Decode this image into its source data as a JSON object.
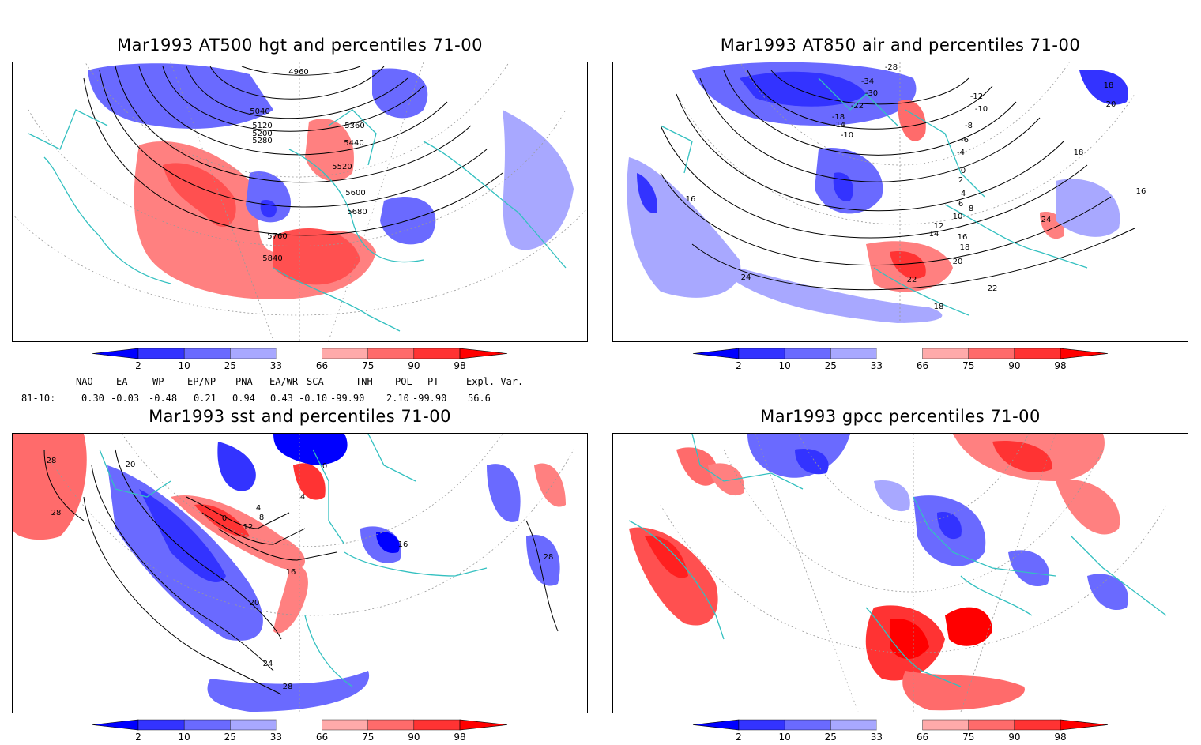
{
  "panels": [
    {
      "id": "hgt",
      "title": "Mar1993 AT500 hgt and percentiles 71-00",
      "contour_labels": [
        "4960",
        "5040",
        "5120",
        "5200",
        "5280",
        "5360",
        "5440",
        "5520",
        "5600",
        "5680",
        "5760",
        "5840"
      ]
    },
    {
      "id": "air",
      "title": "Mar1993 AT850 air and percentiles 71-00",
      "contour_labels": [
        "-28",
        "-34",
        "-30",
        "-22",
        "-18",
        "-14",
        "-10",
        "-12",
        "-10",
        "-8",
        "-6",
        "-4",
        "0",
        "2",
        "4",
        "6",
        "8",
        "10",
        "12",
        "14",
        "16",
        "18",
        "20",
        "22",
        "24",
        "16",
        "18",
        "20",
        "22",
        "18",
        "24",
        "16",
        "18"
      ]
    },
    {
      "id": "sst",
      "title": "Mar1993 sst and percentiles 71-00",
      "contour_labels": [
        "28",
        "28",
        "20",
        "0",
        "4",
        "8",
        "12",
        "16",
        "20",
        "24",
        "28",
        "16",
        "28",
        "0",
        "4"
      ]
    },
    {
      "id": "gpcc",
      "title": "Mar1993 gpcc percentiles 71-00",
      "contour_labels": []
    }
  ],
  "colorbar": {
    "ticks": [
      "2",
      "10",
      "25",
      "33",
      "66",
      "75",
      "90",
      "98"
    ],
    "colors": {
      "lt2": "#0000ff",
      "2_10": "#3333ff",
      "10_25": "#6a6aff",
      "25_33": "#a8a8ff",
      "33_66": "#ffffff",
      "66_75": "#ffaaaa",
      "75_90": "#ff6b6b",
      "90_98": "#ff3333",
      "gt98": "#ff0000"
    }
  },
  "indices": {
    "headers": [
      "NAO",
      "EA",
      "WP",
      "EP/NP",
      "PNA",
      "EA/WR",
      "SCA",
      "TNH",
      "POL",
      "PT",
      "Expl. Var."
    ],
    "row_label": "81-10:",
    "values": [
      "0.30",
      "-0.03",
      "-0.48",
      "0.21",
      "0.94",
      "0.43",
      "-0.10",
      "-99.90",
      "2.10",
      "-99.90",
      "56.6"
    ]
  },
  "colors": {
    "coastline": "#33c0c0",
    "contour": "#000000",
    "gridline": "#999999"
  }
}
